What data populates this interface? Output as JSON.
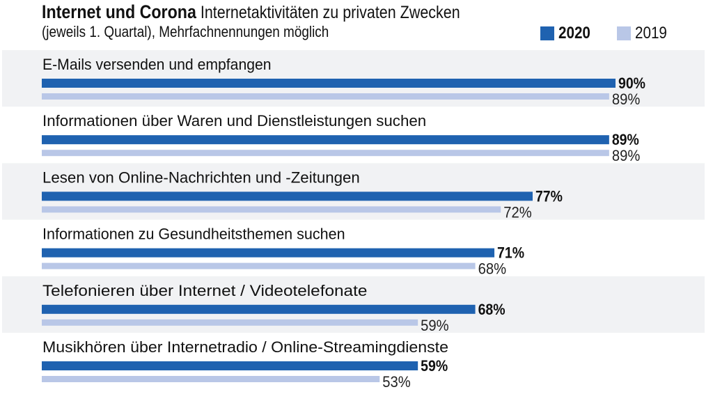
{
  "chart_data": {
    "type": "bar",
    "orientation": "horizontal",
    "title": "Internet und Corona",
    "subtitle": "Internetaktivitäten zu privaten Zwecken (jeweils 1. Quartal), Mehrfachnennungen möglich",
    "subtitle_line1": "Internetaktivitäten zu privaten Zwecken",
    "subtitle_line2": "(jeweils 1. Quartal), Mehrfachnennungen möglich",
    "categories": [
      "E-Mails versenden und empfangen",
      "Informationen über Waren und Dienstleistungen suchen",
      "Lesen von Online-Nachrichten und -Zeitungen",
      "Informationen zu Gesundheitsthemen suchen",
      "Telefonieren über Internet / Videotelefonate",
      "Musikhören über Internetradio / Online-Streamingdienste"
    ],
    "series": [
      {
        "name": "2020",
        "values": [
          90,
          89,
          77,
          71,
          68,
          59
        ],
        "color": "#1f62b0"
      },
      {
        "name": "2019",
        "values": [
          89,
          89,
          72,
          68,
          59,
          53
        ],
        "color": "#b9c7e7"
      }
    ],
    "value_suffix": "%",
    "xlim": [
      0,
      100
    ],
    "grid": false,
    "legend": "top-right",
    "row_background": "#f1f2f4"
  }
}
